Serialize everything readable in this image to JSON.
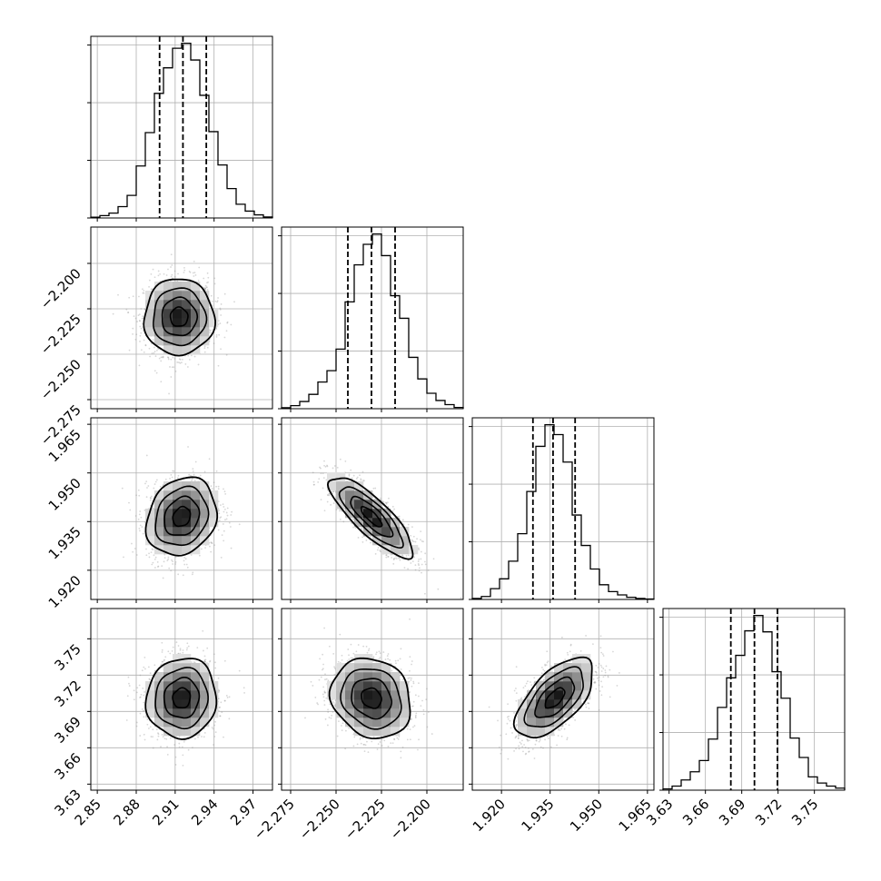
{
  "chart_data": {
    "type": "corner",
    "parameters": [
      {
        "name": "",
        "range": [
          2.845,
          2.985
        ],
        "ticks": [
          2.85,
          2.88,
          2.91,
          2.94,
          2.97
        ],
        "tick_labels": [
          "2.85",
          "2.88",
          "2.91",
          "2.94",
          "2.97"
        ],
        "median": 2.916,
        "q16": 2.898,
        "q84": 2.934,
        "hist_x": [
          2.845,
          2.852,
          2.859,
          2.866,
          2.873,
          2.88,
          2.887,
          2.894,
          2.901,
          2.908,
          2.915,
          2.922,
          2.929,
          2.936,
          2.943,
          2.95,
          2.957,
          2.964,
          2.971,
          2.978,
          2.985
        ],
        "hist_counts": [
          0.4,
          1.2,
          2.5,
          5.8,
          11.5,
          26.5,
          43.5,
          63.5,
          76.5,
          86.5,
          89.0,
          80.5,
          62.5,
          44.0,
          27.0,
          15.0,
          7.0,
          3.5,
          1.6,
          0.5
        ]
      },
      {
        "name": "",
        "range": [
          -2.28,
          -2.18
        ],
        "ticks": [
          -2.275,
          -2.25,
          -2.225,
          -2.2
        ],
        "tick_labels": [
          "−2.275",
          "−2.250",
          "−2.225",
          "−2.200"
        ],
        "median": -2.2305,
        "q16": -2.2435,
        "q84": -2.2175,
        "hist_x": [
          -2.28,
          -2.275,
          -2.27,
          -2.265,
          -2.26,
          -2.255,
          -2.25,
          -2.245,
          -2.24,
          -2.235,
          -2.23,
          -2.225,
          -2.22,
          -2.215,
          -2.21,
          -2.205,
          -2.2,
          -2.195,
          -2.19,
          -2.185,
          -2.18
        ],
        "hist_counts": [
          0.5,
          1.5,
          3.5,
          7.0,
          13.0,
          18.5,
          29.0,
          52.0,
          70.0,
          80.0,
          85.0,
          74.5,
          55.0,
          44.0,
          25.0,
          14.5,
          7.5,
          4.0,
          2.0,
          0.6
        ]
      },
      {
        "name": "",
        "range": [
          1.911,
          1.967
        ],
        "ticks": [
          1.92,
          1.935,
          1.95,
          1.965
        ],
        "tick_labels": [
          "1.920",
          "1.935",
          "1.950",
          "1.965"
        ],
        "median": 1.9359,
        "q16": 1.9297,
        "q84": 1.9427,
        "hist_x": [
          1.911,
          1.9138,
          1.9166,
          1.9194,
          1.9222,
          1.925,
          1.9278,
          1.9306,
          1.9334,
          1.9362,
          1.939,
          1.9418,
          1.9446,
          1.9474,
          1.9502,
          1.953,
          1.9558,
          1.9586,
          1.9614,
          1.9642,
          1.967
        ],
        "hist_counts": [
          0.5,
          1.5,
          5.5,
          10.5,
          19.5,
          33.5,
          55.0,
          78.0,
          89.0,
          84.0,
          70.0,
          43.0,
          27.5,
          15.5,
          7.5,
          4.0,
          2.3,
          1.1,
          0.5,
          0.2
        ]
      },
      {
        "name": "",
        "range": [
          3.625,
          3.775
        ],
        "ticks": [
          3.63,
          3.66,
          3.69,
          3.72,
          3.75
        ],
        "tick_labels": [
          "3.63",
          "3.66",
          "3.69",
          "3.72",
          "3.75"
        ],
        "median": 3.7005,
        "q16": 3.681,
        "q84": 3.7195,
        "hist_x": [
          3.625,
          3.6325,
          3.64,
          3.6475,
          3.655,
          3.6625,
          3.67,
          3.6775,
          3.685,
          3.6925,
          3.7,
          3.7075,
          3.715,
          3.7225,
          3.73,
          3.7375,
          3.745,
          3.7525,
          3.76,
          3.7675,
          3.775
        ],
        "hist_counts": [
          0.6,
          2.0,
          5.0,
          9.0,
          14.5,
          25.0,
          40.5,
          55.0,
          66.0,
          78.0,
          85.5,
          77.5,
          58.0,
          45.0,
          25.5,
          16.0,
          6.5,
          3.5,
          2.0,
          1.0
        ]
      }
    ],
    "pairs": [
      {
        "x": 0,
        "y": 1,
        "center": [
          2.913,
          -2.2295
        ],
        "sigma": [
          0.0135,
          0.0105
        ],
        "rho": 0.0
      },
      {
        "x": 0,
        "y": 2,
        "center": [
          2.915,
          1.9365
        ],
        "sigma": [
          0.0135,
          0.006
        ],
        "rho": 0.18
      },
      {
        "x": 1,
        "y": 2,
        "center": [
          -2.2305,
          1.9365
        ],
        "sigma": [
          0.0115,
          0.0062
        ],
        "rho": -0.82
      },
      {
        "x": 0,
        "y": 3,
        "center": [
          2.915,
          3.701
        ],
        "sigma": [
          0.0135,
          0.0165
        ],
        "rho": 0.05
      },
      {
        "x": 1,
        "y": 3,
        "center": [
          -2.2305,
          3.701
        ],
        "sigma": [
          0.011,
          0.0165
        ],
        "rho": -0.15
      },
      {
        "x": 2,
        "y": 3,
        "center": [
          1.9365,
          3.701
        ],
        "sigma": [
          0.006,
          0.0165
        ],
        "rho": 0.62
      }
    ],
    "contour_levels_sigma": [
      0.5,
      1.0,
      1.5,
      2.0
    ],
    "grid": true,
    "colors": {
      "contour": "#000000",
      "scatter": "#8c8c8c",
      "frame": "#000000",
      "grid": "#b0b0b0"
    }
  }
}
